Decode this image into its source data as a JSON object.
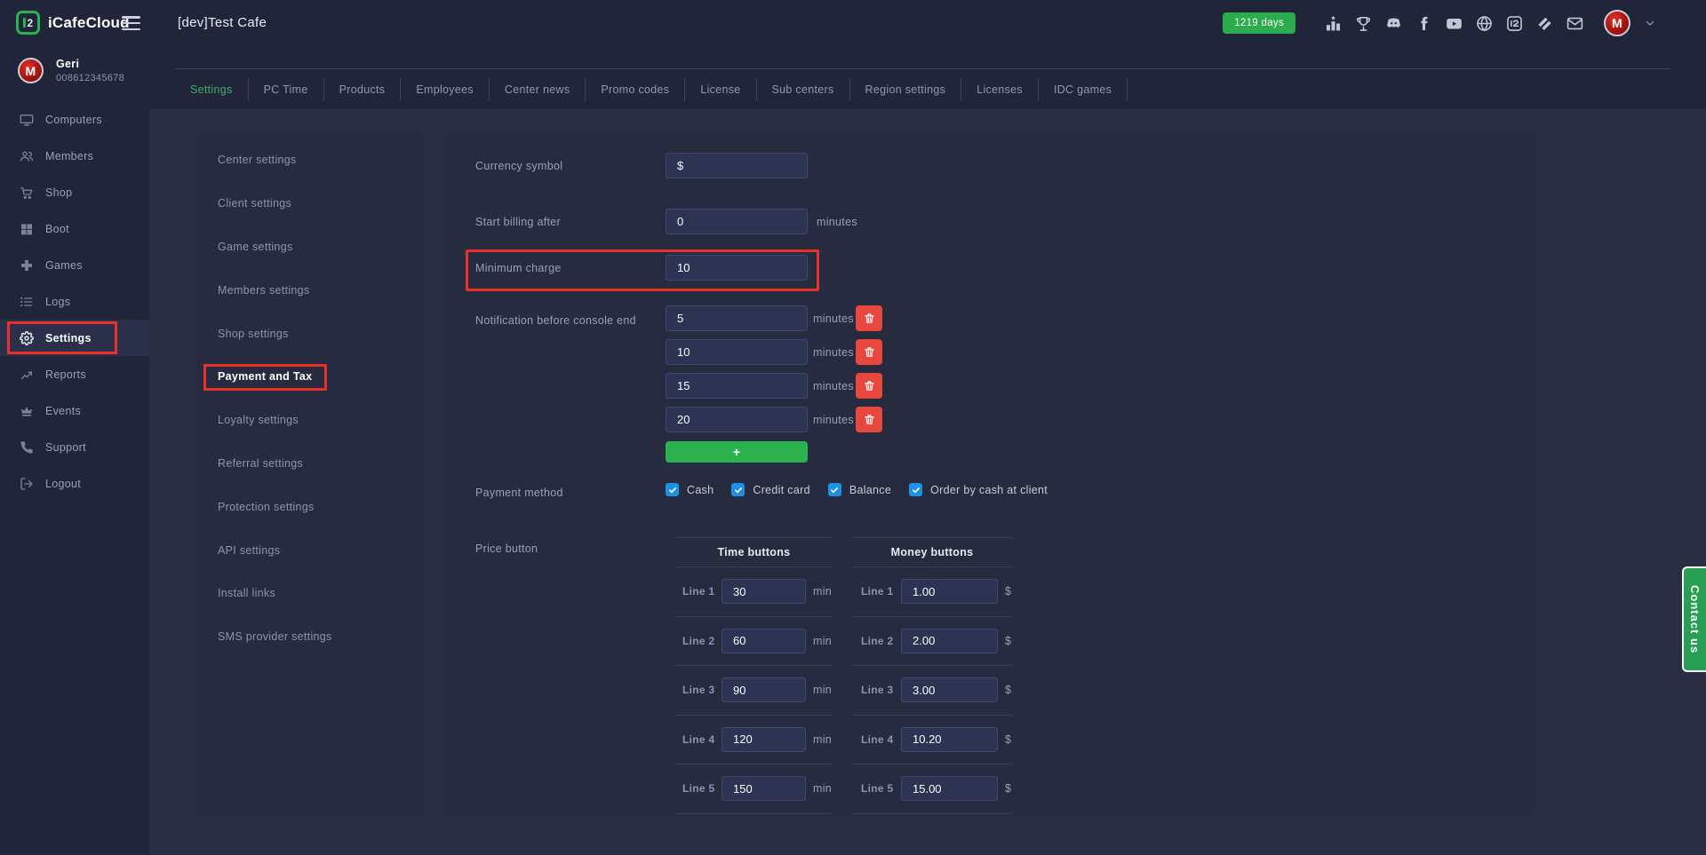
{
  "colors": {
    "accent_green": "#41b061",
    "badge_green": "#2bac4d",
    "button_green": "#2bb24f",
    "contact_green": "#27a053",
    "danger_red": "#e8473e",
    "highlight_red": "#e8312b",
    "checkbox_blue": "#1e90e8",
    "avatar_red": "#a51410"
  },
  "header": {
    "logo_text": "iCafeCloud",
    "logo_mark": "2",
    "cafe_title": "[dev]Test Cafe",
    "days_badge": "1219 days",
    "social_icons": [
      {
        "name": "ranking"
      },
      {
        "name": "trophy"
      },
      {
        "name": "discord"
      },
      {
        "name": "facebook"
      },
      {
        "name": "youtube"
      },
      {
        "name": "globe"
      },
      {
        "name": "icafe"
      },
      {
        "name": "layers"
      },
      {
        "name": "mail"
      }
    ],
    "avatar_letter": "M"
  },
  "sidebar": {
    "user": {
      "name": "Geri",
      "phone": "008612345678",
      "avatar_letter": "M"
    },
    "items": [
      {
        "label": "Computers",
        "icon": "monitor"
      },
      {
        "label": "Members",
        "icon": "people"
      },
      {
        "label": "Shop",
        "icon": "cart"
      },
      {
        "label": "Boot",
        "icon": "windows"
      },
      {
        "label": "Games",
        "icon": "gamepad"
      },
      {
        "label": "Logs",
        "icon": "list"
      },
      {
        "label": "Settings",
        "icon": "gear",
        "active": true,
        "highlighted": true
      },
      {
        "label": "Reports",
        "icon": "chart"
      },
      {
        "label": "Events",
        "icon": "crown"
      },
      {
        "label": "Support",
        "icon": "phone"
      },
      {
        "label": "Logout",
        "icon": "logout"
      }
    ]
  },
  "tabs": [
    {
      "label": "Settings",
      "active": true
    },
    {
      "label": "PC Time"
    },
    {
      "label": "Products"
    },
    {
      "label": "Employees"
    },
    {
      "label": "Center news"
    },
    {
      "label": "Promo codes"
    },
    {
      "label": "License"
    },
    {
      "label": "Sub centers"
    },
    {
      "label": "Region settings"
    },
    {
      "label": "Licenses"
    },
    {
      "label": "IDC games"
    }
  ],
  "settings_nav": {
    "items": [
      {
        "label": "Center settings"
      },
      {
        "label": "Client settings"
      },
      {
        "label": "Game settings"
      },
      {
        "label": "Members settings"
      },
      {
        "label": "Shop settings"
      },
      {
        "label": "Payment and Tax",
        "active": true,
        "highlighted": true
      },
      {
        "label": "Loyalty settings"
      },
      {
        "label": "Referral settings"
      },
      {
        "label": "Protection settings"
      },
      {
        "label": "API settings"
      },
      {
        "label": "Install links"
      },
      {
        "label": "SMS provider settings"
      }
    ]
  },
  "form": {
    "currency": {
      "label": "Currency symbol",
      "value": "$"
    },
    "start_billing": {
      "label": "Start billing after",
      "value": "0",
      "suffix": "minutes"
    },
    "minimum_charge": {
      "label": "Minimum charge",
      "value": "10",
      "highlighted": true
    },
    "notification": {
      "label": "Notification before console end",
      "add_button": "+",
      "rows": [
        {
          "value": "5",
          "suffix": "minutes"
        },
        {
          "value": "10",
          "suffix": "minutes"
        },
        {
          "value": "15",
          "suffix": "minutes"
        },
        {
          "value": "20",
          "suffix": "minutes"
        }
      ]
    },
    "payment_method": {
      "label": "Payment method",
      "options": [
        {
          "label": "Cash",
          "checked": true
        },
        {
          "label": "Credit card",
          "checked": true
        },
        {
          "label": "Balance",
          "checked": true
        },
        {
          "label": "Order by cash at client",
          "checked": true
        }
      ]
    },
    "price_button": {
      "label": "Price button",
      "tables": [
        {
          "title": "Time buttons",
          "rows": [
            {
              "line": "Line 1",
              "value": "30",
              "suffix": "min"
            },
            {
              "line": "Line 2",
              "value": "60",
              "suffix": "min"
            },
            {
              "line": "Line 3",
              "value": "90",
              "suffix": "min"
            },
            {
              "line": "Line 4",
              "value": "120",
              "suffix": "min"
            },
            {
              "line": "Line 5",
              "value": "150",
              "suffix": "min"
            }
          ]
        },
        {
          "title": "Money buttons",
          "rows": [
            {
              "line": "Line 1",
              "value": "1.00",
              "suffix": "$"
            },
            {
              "line": "Line 2",
              "value": "2.00",
              "suffix": "$"
            },
            {
              "line": "Line 3",
              "value": "3.00",
              "suffix": "$"
            },
            {
              "line": "Line 4",
              "value": "10.20",
              "suffix": "$"
            },
            {
              "line": "Line 5",
              "value": "15.00",
              "suffix": "$"
            }
          ]
        }
      ]
    }
  },
  "contact_button": {
    "label": "Contact us"
  }
}
